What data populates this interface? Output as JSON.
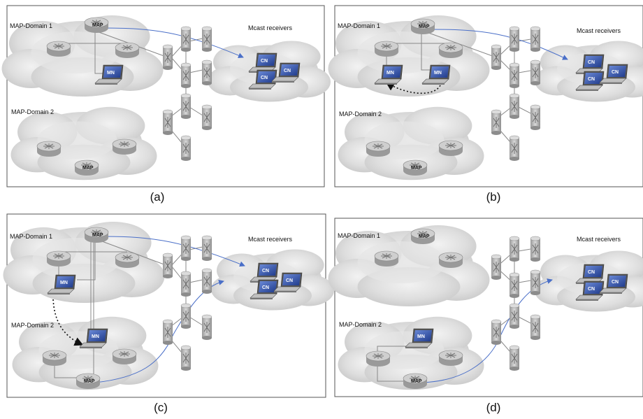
{
  "panels": [
    {
      "caption": "(a)",
      "domain1_label": "MAP-Domain 1",
      "domain2_label": "MAP-Domain 2",
      "receivers_label": "Mcast receivers"
    },
    {
      "caption": "(b)",
      "domain1_label": "MAP-Domain 1",
      "domain2_label": "MAP-Domain 2",
      "receivers_label": "Mcast receivers"
    },
    {
      "caption": "(c)",
      "domain1_label": "MAP-Domain 1",
      "domain2_label": "MAP-Domain 2",
      "receivers_label": "Mcast receivers"
    },
    {
      "caption": "(d)",
      "domain1_label": "MAP-Domain 1",
      "domain2_label": "MAP-Domain 2",
      "receivers_label": "Mcast receivers"
    }
  ],
  "labels": {
    "map": "MAP",
    "mn": "MN",
    "cn": "CN"
  },
  "colors": {
    "flow_line": "#4a6fc8",
    "move_arrow": "#111111",
    "cloud": "#d9d9d9",
    "router": "#bdbdbd",
    "screen": "#3d5bb5"
  }
}
